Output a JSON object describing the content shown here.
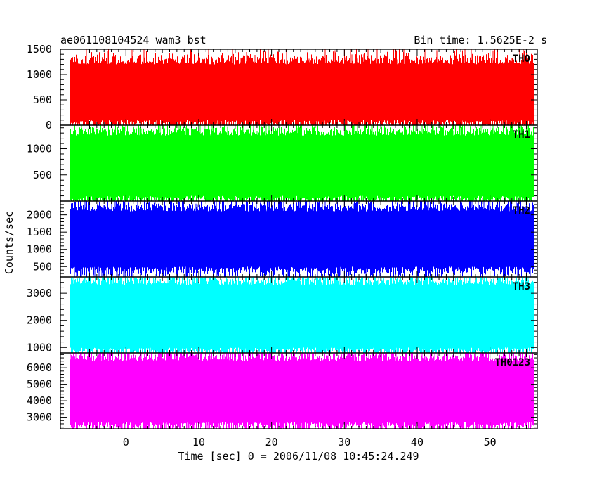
{
  "header": {
    "left_title": "ae061108104524_wam3_bst",
    "right_title": "Bin time: 1.5625E-2 s"
  },
  "chart_data": {
    "type": "line",
    "title": "ae061108104524_wam3_bst",
    "bin_time_label": "Bin time: 1.5625E-2 s",
    "xlabel": "Time [sec] 0 = 2006/11/08 10:45:24.249",
    "ylabel": "Counts/sec",
    "xlim": [
      -9,
      56.5
    ],
    "x_ticks": [
      0,
      10,
      20,
      30,
      40,
      50
    ],
    "data_x_range": [
      -7.7,
      56.0
    ],
    "bin_time": 0.015625,
    "panels": [
      {
        "name": "TH0",
        "color": "#ff0000",
        "ylim": [
          0,
          1500
        ],
        "y_ticks": [
          0,
          500,
          1000,
          1500
        ],
        "mean": 650,
        "band": [
          100,
          1200
        ],
        "max": 1500,
        "min": 0
      },
      {
        "name": "TH1",
        "color": "#00ff00",
        "ylim": [
          0,
          1450
        ],
        "y_ticks": [
          500,
          1000
        ],
        "mean": 650,
        "band": [
          100,
          1250
        ],
        "max": 1450,
        "min": 0
      },
      {
        "name": "TH2",
        "color": "#0000ff",
        "ylim": [
          200,
          2400
        ],
        "y_ticks": [
          500,
          1000,
          1500,
          2000
        ],
        "mean": 1150,
        "band": [
          500,
          2100
        ],
        "max": 2400,
        "min": 200
      },
      {
        "name": "TH3",
        "color": "#00ffff",
        "ylim": [
          800,
          3600
        ],
        "y_ticks": [
          1000,
          2000,
          3000
        ],
        "mean": 2200,
        "band": [
          1000,
          3300
        ],
        "max": 3600,
        "min": 800
      },
      {
        "name": "TH0123",
        "color": "#ff00ff",
        "ylim": [
          2300,
          6900
        ],
        "y_ticks": [
          3000,
          4000,
          5000,
          6000
        ],
        "mean": 4500,
        "band": [
          2700,
          6400
        ],
        "max": 6900,
        "min": 2300
      }
    ]
  }
}
